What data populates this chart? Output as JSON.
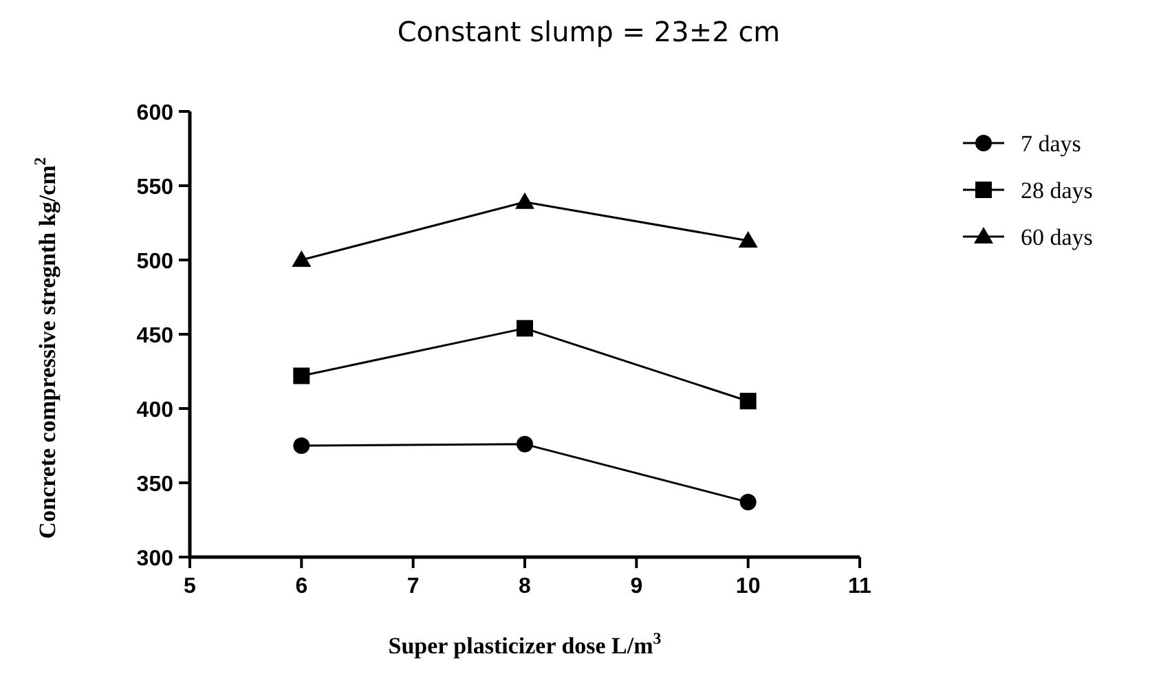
{
  "chart_data": {
    "type": "line",
    "title": "Constant slump = 23±2 cm",
    "xlabel": "Super plasticizer dose L/m$^{3}$",
    "ylabel": "Concrete compressive stregnth kg/cm$^{2}$",
    "x": [
      6,
      8,
      10
    ],
    "xlim": [
      5,
      11
    ],
    "xticks": [
      5,
      6,
      7,
      8,
      9,
      10,
      11
    ],
    "ylim": [
      300,
      600
    ],
    "yticks": [
      300,
      350,
      400,
      450,
      500,
      550,
      600
    ],
    "grid": false,
    "legend": "right",
    "line_style": "solid",
    "series": [
      {
        "name": "7 days",
        "color": "#000000",
        "marker": "circle",
        "values": [
          375,
          376,
          337
        ]
      },
      {
        "name": "28 days",
        "color": "#000000",
        "marker": "square",
        "values": [
          422,
          454,
          405
        ]
      },
      {
        "name": "60 days",
        "color": "#000000",
        "marker": "triangle",
        "values": [
          500,
          539,
          513
        ]
      }
    ]
  }
}
